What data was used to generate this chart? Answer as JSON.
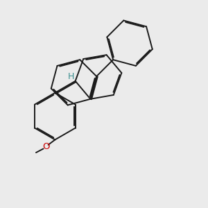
{
  "bg_color": "#ebebeb",
  "bond_color": "#1a1a1a",
  "bond_width": 1.4,
  "H_color": "#3a8f8f",
  "O_color": "#cc0000",
  "font_size": 9.5,
  "dbo": 0.055
}
